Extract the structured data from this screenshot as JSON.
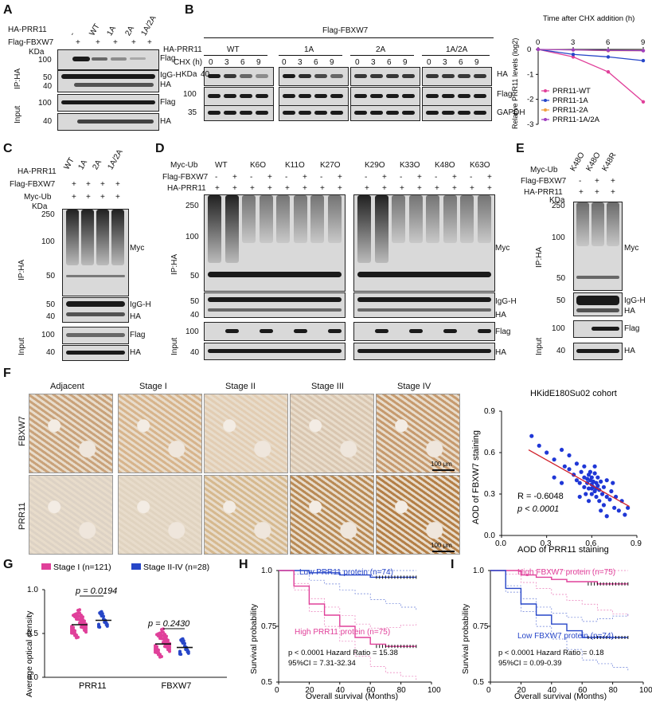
{
  "panels": {
    "A": "A",
    "B": "B",
    "C": "C",
    "D": "D",
    "E": "E",
    "F": "F",
    "G": "G",
    "H": "H",
    "I": "I"
  },
  "A": {
    "row1_label": "HA-PRR11",
    "row2_label": "Flag-FBXW7",
    "row1_marks": [
      "-",
      "WT",
      "1A",
      "2A",
      "1A/2A"
    ],
    "row2_marks": [
      "+",
      "+",
      "+",
      "+",
      "+"
    ],
    "kda": "KDa",
    "ip": "IP:HA",
    "input": "Input",
    "markers": [
      "100",
      "50",
      "40",
      "100",
      "40"
    ],
    "bands": [
      "Flag",
      "IgG-H",
      "HA",
      "Flag",
      "HA"
    ]
  },
  "B": {
    "title": "Flag-FBXW7",
    "row_label": "HA-PRR11",
    "chx_label": "CHX (h)",
    "groups": [
      "WT",
      "1A",
      "2A",
      "1A/2A"
    ],
    "times": [
      "0",
      "3",
      "6",
      "9"
    ],
    "kda": "KDa",
    "markers": [
      "40",
      "100",
      "35"
    ],
    "bands": [
      "HA",
      "Flag",
      "GAPDH"
    ]
  },
  "C": {
    "rows": [
      "HA-PRR11",
      "Flag-FBXW7",
      "Myc-Ub"
    ],
    "cols": [
      "WT",
      "1A",
      "2A",
      "1A/2A"
    ],
    "plus": [
      "+",
      "+",
      "+",
      "+"
    ],
    "kda": "KDa",
    "ip": "IP:HA",
    "input": "Input",
    "markers": [
      "250",
      "100",
      "50",
      "50",
      "40",
      "100",
      "40"
    ],
    "bands": [
      "Myc",
      "IgG-H",
      "HA",
      "Flag",
      "HA"
    ]
  },
  "D": {
    "rows": [
      "Myc-Ub",
      "Flag-FBXW7",
      "HA-PRR11"
    ],
    "ub": [
      "WT",
      "K6O",
      "K11O",
      "K27O",
      "K29O",
      "K33O",
      "K48O",
      "K63O"
    ],
    "flag": [
      "-",
      "+",
      "-",
      "+",
      "-",
      "+",
      "-",
      "+",
      "-",
      "+",
      "-",
      "+",
      "-",
      "+",
      "-",
      "+"
    ],
    "ha": [
      "+",
      "+",
      "+",
      "+",
      "+",
      "+",
      "+",
      "+",
      "+",
      "+",
      "+",
      "+",
      "+",
      "+",
      "+",
      "+"
    ],
    "ip": "IP:HA",
    "input": "Input",
    "markers": [
      "250",
      "100",
      "50",
      "50",
      "40",
      "100",
      "40"
    ],
    "bands": [
      "Myc",
      "IgG-H",
      "HA",
      "Flag",
      "HA"
    ]
  },
  "E": {
    "rows": [
      "Myc-Ub",
      "Flag-FBXW7",
      "HA-PRR11"
    ],
    "cols": [
      "K48O",
      "K48O",
      "K48R"
    ],
    "flag": [
      "-",
      "+",
      "+"
    ],
    "ha": [
      "+",
      "+",
      "+"
    ],
    "kda": "KDa",
    "ip": "IP:HA",
    "input": "Input",
    "markers": [
      "250",
      "100",
      "50",
      "50",
      "100",
      "40"
    ],
    "bands": [
      "Myc",
      "IgG-H",
      "HA",
      "Flag",
      "HA"
    ]
  },
  "F": {
    "columns": [
      "Adjacent",
      "Stage I",
      "Stage II",
      "Stage III",
      "Stage IV"
    ],
    "rows": [
      "FBXW7",
      "PRR11"
    ],
    "scalebar": "100 μm",
    "scatter_title": "HKidE180Su02 cohort",
    "r_text": "R = -0.6048",
    "p_text": "p < 0.0001",
    "xlabel": "AOD of PRR11 staining",
    "ylabel": "AOD of FBXW7 staining"
  },
  "G": {
    "p1": "p = 0.0194",
    "p2": "p = 0.2430",
    "ylabel": "Average optical density",
    "legend1": "Stage I (n=121)",
    "legend2": "Stage II-IV (n=28)"
  },
  "H": {
    "low": "Low PRR11 protein (n=74)",
    "high": "High PRR11 protein (n=75)",
    "stat1": "p < 0.0001 Hazard Ratio = 15.38",
    "stat2": "95%CI = 7.31-32.34",
    "xlabel": "Overall survival (Months)",
    "ylabel": "Survival probability"
  },
  "I": {
    "high": "High FBXW7 protein (n=75)",
    "low": "Low FBXW7 protein (n=74)",
    "stat1": "p < 0.0001 Hazard Ratio = 0.18",
    "stat2": "95%CI = 0.09-0.39",
    "xlabel": "Overall survival (Months)",
    "ylabel": "Survival probability"
  },
  "chart_data": [
    {
      "type": "line",
      "title": "Time after CHX addition (h)",
      "x": [
        0,
        3,
        6,
        9
      ],
      "series": [
        {
          "name": "PRR11-WT",
          "values": [
            0,
            -0.3,
            -0.9,
            -2.1
          ],
          "color": "#e0409a"
        },
        {
          "name": "PRR11-1A",
          "values": [
            0,
            -0.2,
            -0.3,
            -0.45
          ],
          "color": "#2746c8"
        },
        {
          "name": "PRR11-2A",
          "values": [
            0,
            -0.02,
            -0.05,
            -0.05
          ],
          "color": "#f0a040"
        },
        {
          "name": "PRR11-1A/2A",
          "values": [
            0,
            -0.02,
            -0.04,
            -0.05
          ],
          "color": "#a040c0"
        }
      ],
      "xlim": [
        0,
        9
      ],
      "ylim": [
        -3,
        0
      ],
      "xticks": [
        "0",
        "3",
        "6",
        "9"
      ],
      "yticks": [
        "0",
        "-1",
        "-2",
        "-3"
      ],
      "ylabel": "Relative PRR11 levels (log2)"
    },
    {
      "type": "scatter",
      "title": "HKidE180Su02 cohort",
      "xlim": [
        0,
        0.9
      ],
      "ylim": [
        0,
        0.9
      ],
      "xticks": [
        "0.0",
        "0.3",
        "0.6",
        "0.9"
      ],
      "yticks": [
        "0.0",
        "0.3",
        "0.6",
        "0.9"
      ],
      "fit": {
        "x": [
          0.18,
          0.85
        ],
        "y": [
          0.62,
          0.21
        ]
      },
      "points": [
        [
          0.2,
          0.72
        ],
        [
          0.25,
          0.65
        ],
        [
          0.3,
          0.6
        ],
        [
          0.35,
          0.55
        ],
        [
          0.4,
          0.62
        ],
        [
          0.42,
          0.5
        ],
        [
          0.45,
          0.48
        ],
        [
          0.48,
          0.44
        ],
        [
          0.5,
          0.52
        ],
        [
          0.5,
          0.4
        ],
        [
          0.52,
          0.38
        ],
        [
          0.53,
          0.46
        ],
        [
          0.55,
          0.42
        ],
        [
          0.55,
          0.35
        ],
        [
          0.56,
          0.3
        ],
        [
          0.57,
          0.38
        ],
        [
          0.58,
          0.44
        ],
        [
          0.58,
          0.34
        ],
        [
          0.59,
          0.4
        ],
        [
          0.6,
          0.37
        ],
        [
          0.6,
          0.42
        ],
        [
          0.6,
          0.3
        ],
        [
          0.61,
          0.35
        ],
        [
          0.62,
          0.45
        ],
        [
          0.62,
          0.32
        ],
        [
          0.63,
          0.38
        ],
        [
          0.63,
          0.28
        ],
        [
          0.64,
          0.36
        ],
        [
          0.64,
          0.42
        ],
        [
          0.65,
          0.33
        ],
        [
          0.65,
          0.25
        ],
        [
          0.66,
          0.39
        ],
        [
          0.67,
          0.3
        ],
        [
          0.68,
          0.35
        ],
        [
          0.68,
          0.22
        ],
        [
          0.7,
          0.28
        ],
        [
          0.7,
          0.4
        ],
        [
          0.72,
          0.26
        ],
        [
          0.73,
          0.32
        ],
        [
          0.75,
          0.2
        ],
        [
          0.76,
          0.28
        ],
        [
          0.78,
          0.18
        ],
        [
          0.8,
          0.25
        ],
        [
          0.82,
          0.15
        ],
        [
          0.84,
          0.2
        ],
        [
          0.45,
          0.58
        ],
        [
          0.55,
          0.5
        ],
        [
          0.62,
          0.5
        ],
        [
          0.58,
          0.25
        ],
        [
          0.66,
          0.18
        ],
        [
          0.7,
          0.14
        ],
        [
          0.52,
          0.28
        ],
        [
          0.35,
          0.42
        ],
        [
          0.4,
          0.38
        ],
        [
          0.74,
          0.38
        ],
        [
          0.59,
          0.46
        ],
        [
          0.61,
          0.39
        ],
        [
          0.57,
          0.41
        ],
        [
          0.63,
          0.34
        ],
        [
          0.6,
          0.34
        ]
      ]
    },
    {
      "type": "scatter",
      "title": "",
      "categories": [
        "PRR11",
        "FBXW7"
      ],
      "series": [
        {
          "name": "Stage I (n=121)",
          "mean": [
            0.6,
            0.38
          ]
        },
        {
          "name": "Stage II-IV (n=28)",
          "mean": [
            0.65,
            0.34
          ]
        }
      ],
      "ylim": [
        0,
        1
      ],
      "yticks": [
        "0.0",
        "0.5",
        "1.0"
      ],
      "ylabel": "Average optical density"
    },
    {
      "type": "line",
      "title": "",
      "x": [
        0,
        10,
        20,
        30,
        40,
        50,
        60,
        70,
        80,
        90
      ],
      "series": [
        {
          "name": "Low PRR11 protein (n=74)",
          "values": [
            1,
            1,
            0.99,
            0.99,
            0.98,
            0.98,
            0.97,
            0.97,
            0.97,
            0.97
          ],
          "color": "#2746c8"
        },
        {
          "name": "High PRR11 protein (n=75)",
          "values": [
            1,
            0.93,
            0.85,
            0.8,
            0.75,
            0.7,
            0.67,
            0.66,
            0.66,
            0.66
          ],
          "color": "#e0409a"
        }
      ],
      "xlim": [
        0,
        100
      ],
      "ylim": [
        0.5,
        1
      ],
      "xticks": [
        "0",
        "20",
        "40",
        "60",
        "80",
        "100"
      ],
      "yticks": [
        "0.5",
        "0.75",
        "1.0"
      ],
      "xlabel": "Overall survival (Months)",
      "ylabel": "Survival probability"
    },
    {
      "type": "line",
      "title": "",
      "x": [
        0,
        10,
        20,
        30,
        40,
        50,
        60,
        70,
        80,
        90
      ],
      "series": [
        {
          "name": "High FBXW7 protein (n=75)",
          "values": [
            1,
            1,
            0.98,
            0.97,
            0.96,
            0.95,
            0.95,
            0.94,
            0.94,
            0.94
          ],
          "color": "#e0409a"
        },
        {
          "name": "Low FBXW7 protein (n=74)",
          "values": [
            1,
            0.92,
            0.85,
            0.8,
            0.76,
            0.73,
            0.7,
            0.7,
            0.7,
            0.7
          ],
          "color": "#2746c8"
        }
      ],
      "xlim": [
        0,
        100
      ],
      "ylim": [
        0.5,
        1
      ],
      "xticks": [
        "0",
        "20",
        "40",
        "60",
        "80",
        "100"
      ],
      "yticks": [
        "0.5",
        "0.75",
        "1.0"
      ],
      "xlabel": "Overall survival (Months)",
      "ylabel": "Survival probability"
    }
  ]
}
